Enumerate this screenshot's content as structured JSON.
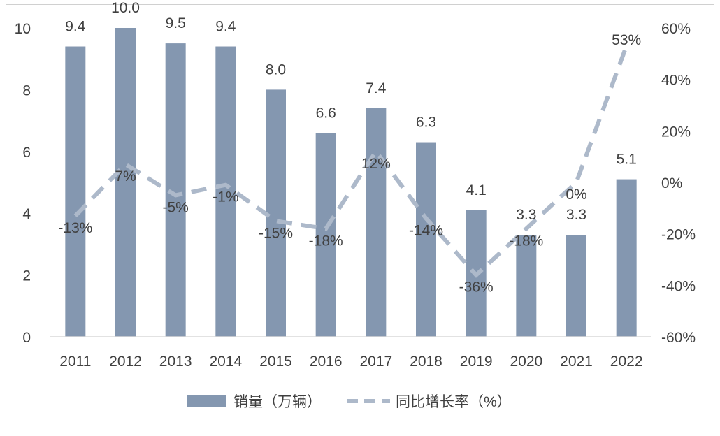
{
  "chart_data": {
    "type": "bar",
    "categories": [
      "2011",
      "2012",
      "2013",
      "2014",
      "2015",
      "2016",
      "2017",
      "2018",
      "2019",
      "2020",
      "2021",
      "2022"
    ],
    "series": [
      {
        "name": "销量（万辆）",
        "type": "bar",
        "axis": "left",
        "values": [
          9.4,
          10.0,
          9.5,
          9.4,
          8.0,
          6.6,
          7.4,
          6.3,
          4.1,
          3.3,
          3.3,
          5.1
        ],
        "labels": [
          "9.4",
          "10.0",
          "9.5",
          "9.4",
          "8.0",
          "6.6",
          "7.4",
          "6.3",
          "4.1",
          "3.3",
          "3.3",
          "5.1"
        ]
      },
      {
        "name": "同比增长率（%）",
        "type": "line",
        "style": "dashed",
        "axis": "right",
        "values": [
          -13,
          7,
          -5,
          -1,
          -15,
          -18,
          12,
          -14,
          -36,
          -18,
          0,
          53
        ],
        "labels": [
          "-13%",
          "7%",
          "-5%",
          "-1%",
          "-15%",
          "-18%",
          "12%",
          "-14%",
          "-36%",
          "-18%",
          "0%",
          "53%"
        ]
      }
    ],
    "y_left": {
      "range": [
        0,
        10
      ],
      "ticks": [
        "0",
        "2",
        "4",
        "6",
        "8",
        "10"
      ],
      "tick_values": [
        0,
        2,
        4,
        6,
        8,
        10
      ]
    },
    "y_right": {
      "range": [
        -60,
        60
      ],
      "ticks": [
        "-60%",
        "-40%",
        "-20%",
        "0%",
        "20%",
        "40%",
        "60%"
      ],
      "tick_values": [
        -60,
        -40,
        -20,
        0,
        20,
        40,
        60
      ]
    },
    "legend_position": "bottom",
    "grid": false,
    "colors": {
      "bar": "#8497b0",
      "line": "#adb9ca",
      "text": "#404040",
      "axis": "#d9d9d9"
    }
  }
}
